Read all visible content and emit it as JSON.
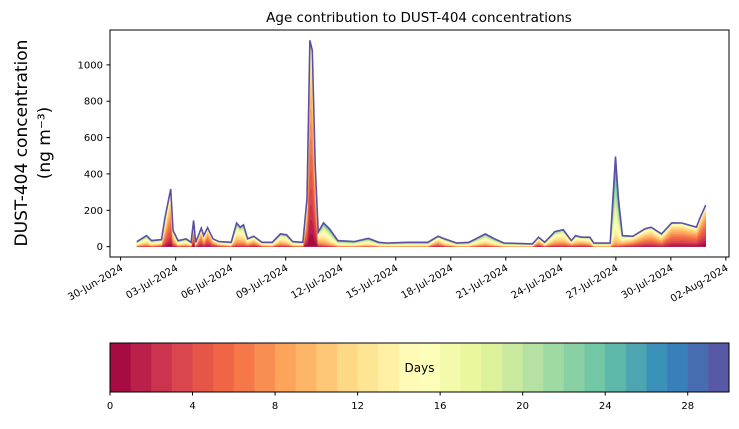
{
  "chart_data": {
    "type": "area",
    "subtype": "stacked",
    "title": "Age contribution to DUST-404 concentrations",
    "ylabel_line1": "DUST-404 concentration",
    "ylabel_line2": "(ng m⁻³)",
    "xlabel": "",
    "x_unit": "days since 30-Jun-2024 00:00",
    "xlim": [
      -0.58,
      33.17
    ],
    "ylim": [
      -57,
      1192
    ],
    "yticks": [
      0,
      200,
      400,
      600,
      800,
      1000
    ],
    "xticks": [
      {
        "day": 0,
        "label": "30-Jun-2024"
      },
      {
        "day": 3,
        "label": "03-Jul-2024"
      },
      {
        "day": 6,
        "label": "06-Jul-2024"
      },
      {
        "day": 9,
        "label": "09-Jul-2024"
      },
      {
        "day": 12,
        "label": "12-Jul-2024"
      },
      {
        "day": 15,
        "label": "15-Jul-2024"
      },
      {
        "day": 18,
        "label": "18-Jul-2024"
      },
      {
        "day": 21,
        "label": "21-Jul-2024"
      },
      {
        "day": 24,
        "label": "24-Jul-2024"
      },
      {
        "day": 27,
        "label": "27-Jul-2024"
      },
      {
        "day": 30,
        "label": "30-Jul-2024"
      },
      {
        "day": 33,
        "label": "02-Aug-2024"
      }
    ],
    "x": [
      0.89,
      1.41,
      1.68,
      2.23,
      2.41,
      2.73,
      2.86,
      3.13,
      3.57,
      3.84,
      3.98,
      4.09,
      4.4,
      4.53,
      4.74,
      5.03,
      5.36,
      6.03,
      6.32,
      6.52,
      6.7,
      6.92,
      7.26,
      7.71,
      8.27,
      8.71,
      9.05,
      9.38,
      9.94,
      10.16,
      10.32,
      10.45,
      10.61,
      10.77,
      11.06,
      11.39,
      11.84,
      12.73,
      13.51,
      14.07,
      14.52,
      15.64,
      16.31,
      16.75,
      17.31,
      17.65,
      18.32,
      18.99,
      19.88,
      20.33,
      20.89,
      21.67,
      22.45,
      22.79,
      23.12,
      23.68,
      24.13,
      24.57,
      24.8,
      25.13,
      25.58,
      25.8,
      26.69,
      26.98,
      27.14,
      27.36,
      27.92,
      28.59,
      28.93,
      29.49,
      30.05,
      30.6,
      31.05,
      31.39,
      31.61,
      31.9
    ],
    "total": [
      28,
      61,
      33,
      39,
      154,
      317,
      89,
      33,
      43,
      24,
      144,
      24,
      102,
      61,
      104,
      43,
      28,
      24,
      130,
      107,
      120,
      43,
      57,
      24,
      24,
      70,
      65,
      28,
      24,
      265,
      1135,
      1080,
      450,
      80,
      131,
      98,
      33,
      28,
      46,
      24,
      20,
      24,
      24,
      24,
      57,
      43,
      20,
      24,
      70,
      46,
      20,
      18,
      15,
      52,
      24,
      83,
      94,
      33,
      61,
      52,
      52,
      20,
      20,
      496,
      265,
      61,
      57,
      98,
      107,
      70,
      131,
      130,
      117,
      107,
      163,
      228
    ],
    "mean_age_days": [
      14,
      13,
      14,
      12,
      9,
      6,
      10,
      14,
      13,
      14,
      5,
      12,
      6,
      9,
      6,
      8,
      11,
      14,
      13,
      12,
      13,
      11,
      9,
      13,
      14,
      12,
      13,
      14,
      14,
      7,
      5,
      5,
      5,
      11,
      14,
      15,
      16,
      16,
      15,
      16,
      16,
      16,
      16,
      16,
      10,
      13,
      16,
      16,
      14,
      15,
      16,
      16,
      15,
      9,
      13,
      12,
      12,
      10,
      12,
      10,
      12,
      16,
      16,
      19,
      18,
      12,
      9,
      8,
      8,
      9,
      6,
      6,
      6,
      6,
      5,
      4
    ],
    "age_bins_days": {
      "min": 0,
      "max": 30,
      "count": 30
    },
    "colorbar": {
      "label": "Days",
      "ticks": [
        0,
        4,
        8,
        12,
        16,
        20,
        24,
        28
      ],
      "colormap": [
        "#9e0142",
        "#d53e4f",
        "#f46d43",
        "#fdae61",
        "#fee08b",
        "#ffffbf",
        "#e6f598",
        "#abdda4",
        "#66c2a5",
        "#3288bd",
        "#5e4fa2"
      ]
    }
  }
}
